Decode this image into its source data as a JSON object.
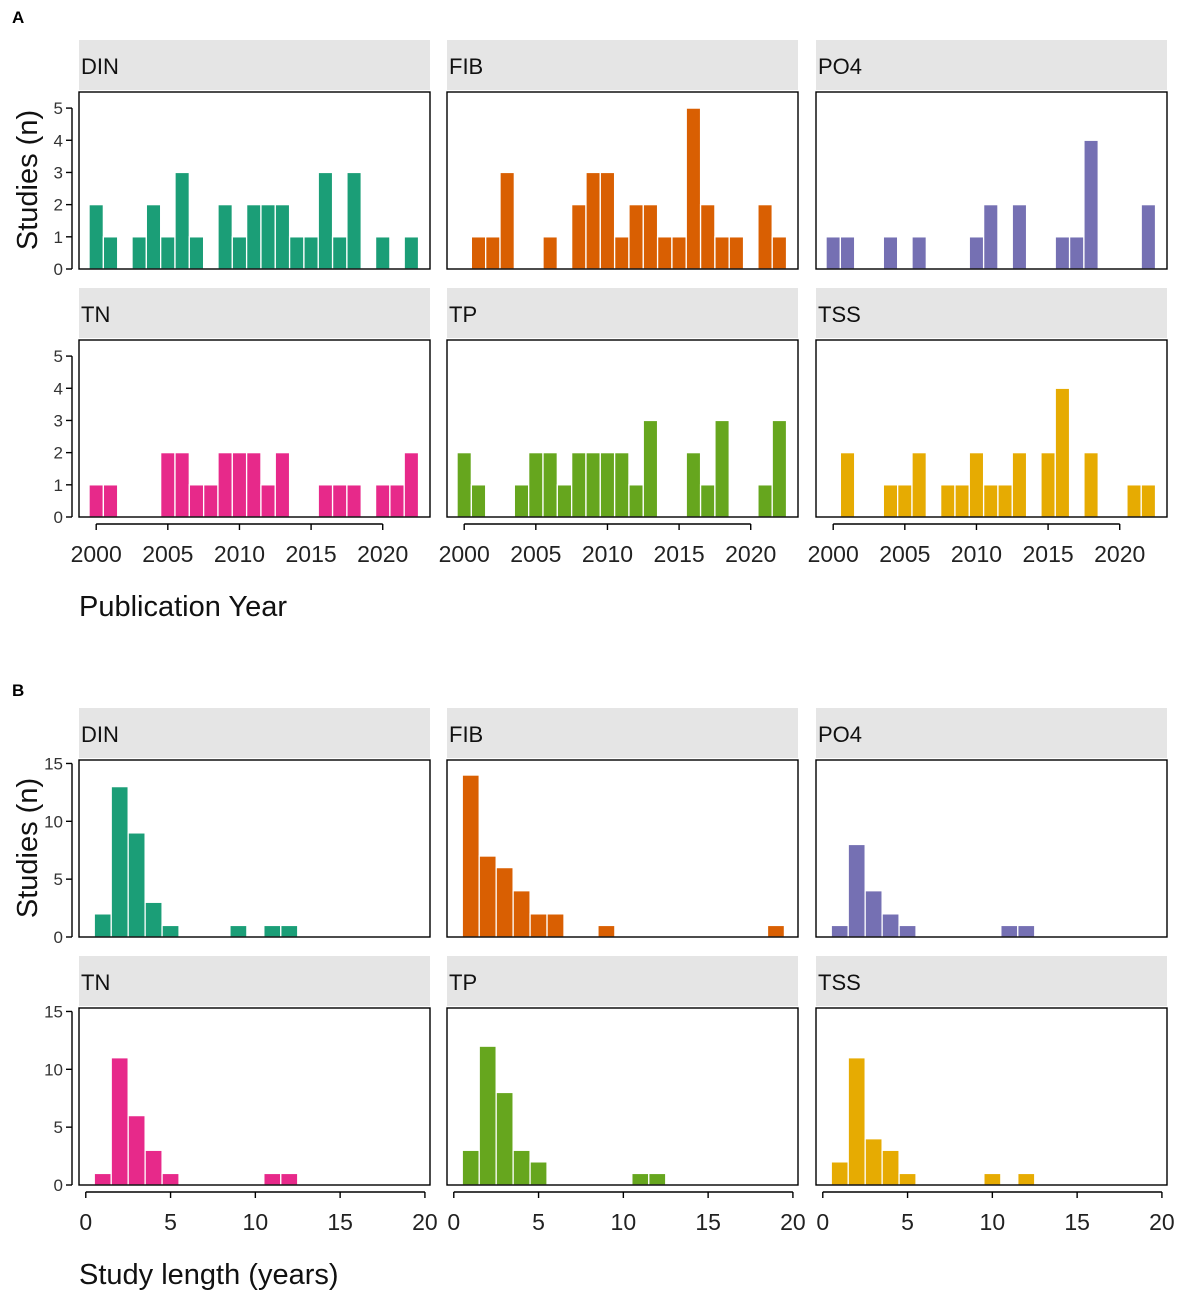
{
  "colors": {
    "DIN": "#1b9e77",
    "FIB": "#d95f02",
    "PO4": "#7570b3",
    "TN": "#e7298a",
    "TP": "#66a61e",
    "TSS": "#e6ab02",
    "strip_background": "#e5e5e5"
  },
  "chart_data": [
    {
      "panel_label": "A",
      "type": "bar",
      "title": "",
      "xlabel": "Publication Year",
      "ylabel": "Studies (n)",
      "xlim": [
        1998.8,
        2023.3
      ],
      "ylim": [
        0,
        5.5
      ],
      "xticks": [
        2000,
        2005,
        2010,
        2015,
        2020
      ],
      "yticks": [
        0,
        1,
        2,
        3,
        4,
        5
      ],
      "bin_width": 1,
      "facets": [
        {
          "name": "DIN",
          "bins": [
            {
              "x": 2000,
              "value": 2
            },
            {
              "x": 2001,
              "value": 1
            },
            {
              "x": 2003,
              "value": 1
            },
            {
              "x": 2004,
              "value": 2
            },
            {
              "x": 2005,
              "value": 1
            },
            {
              "x": 2006,
              "value": 3
            },
            {
              "x": 2007,
              "value": 1
            },
            {
              "x": 2009,
              "value": 2
            },
            {
              "x": 2010,
              "value": 1
            },
            {
              "x": 2011,
              "value": 2
            },
            {
              "x": 2012,
              "value": 2
            },
            {
              "x": 2013,
              "value": 2
            },
            {
              "x": 2014,
              "value": 1
            },
            {
              "x": 2015,
              "value": 1
            },
            {
              "x": 2016,
              "value": 3
            },
            {
              "x": 2017,
              "value": 1
            },
            {
              "x": 2018,
              "value": 3
            },
            {
              "x": 2020,
              "value": 1
            },
            {
              "x": 2022,
              "value": 1
            }
          ]
        },
        {
          "name": "FIB",
          "bins": [
            {
              "x": 2001,
              "value": 1
            },
            {
              "x": 2002,
              "value": 1
            },
            {
              "x": 2003,
              "value": 3
            },
            {
              "x": 2006,
              "value": 1
            },
            {
              "x": 2008,
              "value": 2
            },
            {
              "x": 2009,
              "value": 3
            },
            {
              "x": 2010,
              "value": 3
            },
            {
              "x": 2011,
              "value": 1
            },
            {
              "x": 2012,
              "value": 2
            },
            {
              "x": 2013,
              "value": 2
            },
            {
              "x": 2014,
              "value": 1
            },
            {
              "x": 2015,
              "value": 1
            },
            {
              "x": 2016,
              "value": 5
            },
            {
              "x": 2017,
              "value": 2
            },
            {
              "x": 2018,
              "value": 1
            },
            {
              "x": 2019,
              "value": 1
            },
            {
              "x": 2021,
              "value": 2
            },
            {
              "x": 2022,
              "value": 1
            }
          ]
        },
        {
          "name": "PO4",
          "bins": [
            {
              "x": 2000,
              "value": 1
            },
            {
              "x": 2001,
              "value": 1
            },
            {
              "x": 2004,
              "value": 1
            },
            {
              "x": 2006,
              "value": 1
            },
            {
              "x": 2010,
              "value": 1
            },
            {
              "x": 2011,
              "value": 2
            },
            {
              "x": 2013,
              "value": 2
            },
            {
              "x": 2016,
              "value": 1
            },
            {
              "x": 2017,
              "value": 1
            },
            {
              "x": 2018,
              "value": 4
            },
            {
              "x": 2022,
              "value": 2
            }
          ]
        },
        {
          "name": "TN",
          "bins": [
            {
              "x": 2000,
              "value": 1
            },
            {
              "x": 2001,
              "value": 1
            },
            {
              "x": 2005,
              "value": 2
            },
            {
              "x": 2006,
              "value": 2
            },
            {
              "x": 2007,
              "value": 1
            },
            {
              "x": 2008,
              "value": 1
            },
            {
              "x": 2009,
              "value": 2
            },
            {
              "x": 2010,
              "value": 2
            },
            {
              "x": 2011,
              "value": 2
            },
            {
              "x": 2012,
              "value": 1
            },
            {
              "x": 2013,
              "value": 2
            },
            {
              "x": 2016,
              "value": 1
            },
            {
              "x": 2017,
              "value": 1
            },
            {
              "x": 2018,
              "value": 1
            },
            {
              "x": 2020,
              "value": 1
            },
            {
              "x": 2021,
              "value": 1
            },
            {
              "x": 2022,
              "value": 2
            }
          ]
        },
        {
          "name": "TP",
          "bins": [
            {
              "x": 2000,
              "value": 2
            },
            {
              "x": 2001,
              "value": 1
            },
            {
              "x": 2004,
              "value": 1
            },
            {
              "x": 2005,
              "value": 2
            },
            {
              "x": 2006,
              "value": 2
            },
            {
              "x": 2007,
              "value": 1
            },
            {
              "x": 2008,
              "value": 2
            },
            {
              "x": 2009,
              "value": 2
            },
            {
              "x": 2010,
              "value": 2
            },
            {
              "x": 2011,
              "value": 2
            },
            {
              "x": 2012,
              "value": 1
            },
            {
              "x": 2013,
              "value": 3
            },
            {
              "x": 2016,
              "value": 2
            },
            {
              "x": 2017,
              "value": 1
            },
            {
              "x": 2018,
              "value": 3
            },
            {
              "x": 2021,
              "value": 1
            },
            {
              "x": 2022,
              "value": 3
            }
          ]
        },
        {
          "name": "TSS",
          "bins": [
            {
              "x": 2001,
              "value": 2
            },
            {
              "x": 2004,
              "value": 1
            },
            {
              "x": 2005,
              "value": 1
            },
            {
              "x": 2006,
              "value": 2
            },
            {
              "x": 2008,
              "value": 1
            },
            {
              "x": 2009,
              "value": 1
            },
            {
              "x": 2010,
              "value": 2
            },
            {
              "x": 2011,
              "value": 1
            },
            {
              "x": 2012,
              "value": 1
            },
            {
              "x": 2013,
              "value": 2
            },
            {
              "x": 2015,
              "value": 2
            },
            {
              "x": 2016,
              "value": 4
            },
            {
              "x": 2018,
              "value": 2
            },
            {
              "x": 2021,
              "value": 1
            },
            {
              "x": 2022,
              "value": 1
            }
          ]
        }
      ]
    },
    {
      "panel_label": "B",
      "type": "bar",
      "title": "",
      "xlabel": "Study length (years)",
      "ylabel": "Studies (n)",
      "xlim": [
        -0.4,
        20.3
      ],
      "ylim": [
        0,
        15.3
      ],
      "xticks": [
        0,
        5,
        10,
        15,
        20
      ],
      "yticks": [
        0,
        5,
        10,
        15
      ],
      "bin_width": 1,
      "facets": [
        {
          "name": "DIN",
          "bins": [
            {
              "x": 1,
              "value": 2
            },
            {
              "x": 2,
              "value": 13
            },
            {
              "x": 3,
              "value": 9
            },
            {
              "x": 4,
              "value": 3
            },
            {
              "x": 5,
              "value": 1
            },
            {
              "x": 9,
              "value": 1
            },
            {
              "x": 11,
              "value": 1
            },
            {
              "x": 12,
              "value": 1
            }
          ]
        },
        {
          "name": "FIB",
          "bins": [
            {
              "x": 1,
              "value": 14
            },
            {
              "x": 2,
              "value": 7
            },
            {
              "x": 3,
              "value": 6
            },
            {
              "x": 4,
              "value": 4
            },
            {
              "x": 5,
              "value": 2
            },
            {
              "x": 6,
              "value": 2
            },
            {
              "x": 9,
              "value": 1
            },
            {
              "x": 19,
              "value": 1
            }
          ]
        },
        {
          "name": "PO4",
          "bins": [
            {
              "x": 1,
              "value": 1
            },
            {
              "x": 2,
              "value": 8
            },
            {
              "x": 3,
              "value": 4
            },
            {
              "x": 4,
              "value": 2
            },
            {
              "x": 5,
              "value": 1
            },
            {
              "x": 11,
              "value": 1
            },
            {
              "x": 12,
              "value": 1
            }
          ]
        },
        {
          "name": "TN",
          "bins": [
            {
              "x": 1,
              "value": 1
            },
            {
              "x": 2,
              "value": 11
            },
            {
              "x": 3,
              "value": 6
            },
            {
              "x": 4,
              "value": 3
            },
            {
              "x": 5,
              "value": 1
            },
            {
              "x": 11,
              "value": 1
            },
            {
              "x": 12,
              "value": 1
            }
          ]
        },
        {
          "name": "TP",
          "bins": [
            {
              "x": 1,
              "value": 3
            },
            {
              "x": 2,
              "value": 12
            },
            {
              "x": 3,
              "value": 8
            },
            {
              "x": 4,
              "value": 3
            },
            {
              "x": 5,
              "value": 2
            },
            {
              "x": 11,
              "value": 1
            },
            {
              "x": 12,
              "value": 1
            }
          ]
        },
        {
          "name": "TSS",
          "bins": [
            {
              "x": 1,
              "value": 2
            },
            {
              "x": 2,
              "value": 11
            },
            {
              "x": 3,
              "value": 4
            },
            {
              "x": 4,
              "value": 3
            },
            {
              "x": 5,
              "value": 1
            },
            {
              "x": 10,
              "value": 1
            },
            {
              "x": 12,
              "value": 1
            }
          ]
        }
      ]
    }
  ]
}
